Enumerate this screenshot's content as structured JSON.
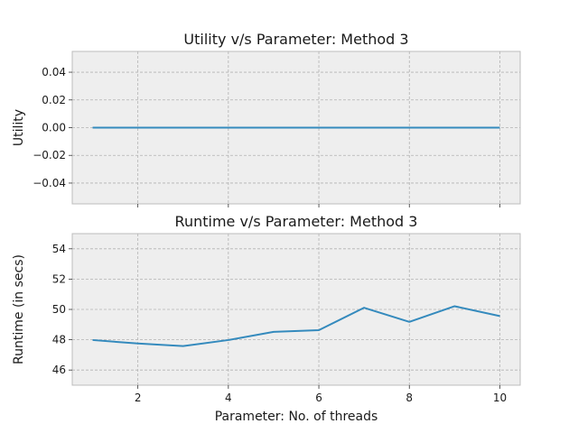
{
  "chart_data": [
    {
      "type": "line",
      "title": "Utility v/s Parameter: Method 3",
      "xlabel": "",
      "ylabel": "Utility",
      "xlim": [
        0.55,
        10.45
      ],
      "ylim": [
        -0.055,
        0.055
      ],
      "xticks": [
        2,
        4,
        6,
        8,
        10
      ],
      "show_xtick_labels": false,
      "yticks": [
        -0.04,
        -0.02,
        0.0,
        0.02,
        0.04
      ],
      "ytick_labels": [
        "−0.04",
        "−0.02",
        "0.00",
        "0.02",
        "0.04"
      ],
      "grid": true,
      "color": "#348abd",
      "x": [
        1,
        2,
        3,
        4,
        5,
        6,
        7,
        8,
        9,
        10
      ],
      "y": [
        0,
        0,
        0,
        0,
        0,
        0,
        0,
        0,
        0,
        0
      ]
    },
    {
      "type": "line",
      "title": "Runtime v/s Parameter: Method 3",
      "xlabel": "Parameter: No. of threads",
      "ylabel": "Runtime (in secs)",
      "xlim": [
        0.55,
        10.45
      ],
      "ylim": [
        45,
        55
      ],
      "xticks": [
        2,
        4,
        6,
        8,
        10
      ],
      "xtick_labels": [
        "2",
        "4",
        "6",
        "8",
        "10"
      ],
      "show_xtick_labels": true,
      "yticks": [
        46,
        48,
        50,
        52,
        54
      ],
      "ytick_labels": [
        "46",
        "48",
        "50",
        "52",
        "54"
      ],
      "grid": true,
      "color": "#348abd",
      "x": [
        1,
        2,
        3,
        4,
        5,
        6,
        7,
        8,
        9,
        10
      ],
      "y": [
        47.98,
        47.75,
        47.58,
        47.98,
        48.52,
        48.63,
        50.11,
        49.18,
        50.21,
        49.56
      ]
    }
  ]
}
